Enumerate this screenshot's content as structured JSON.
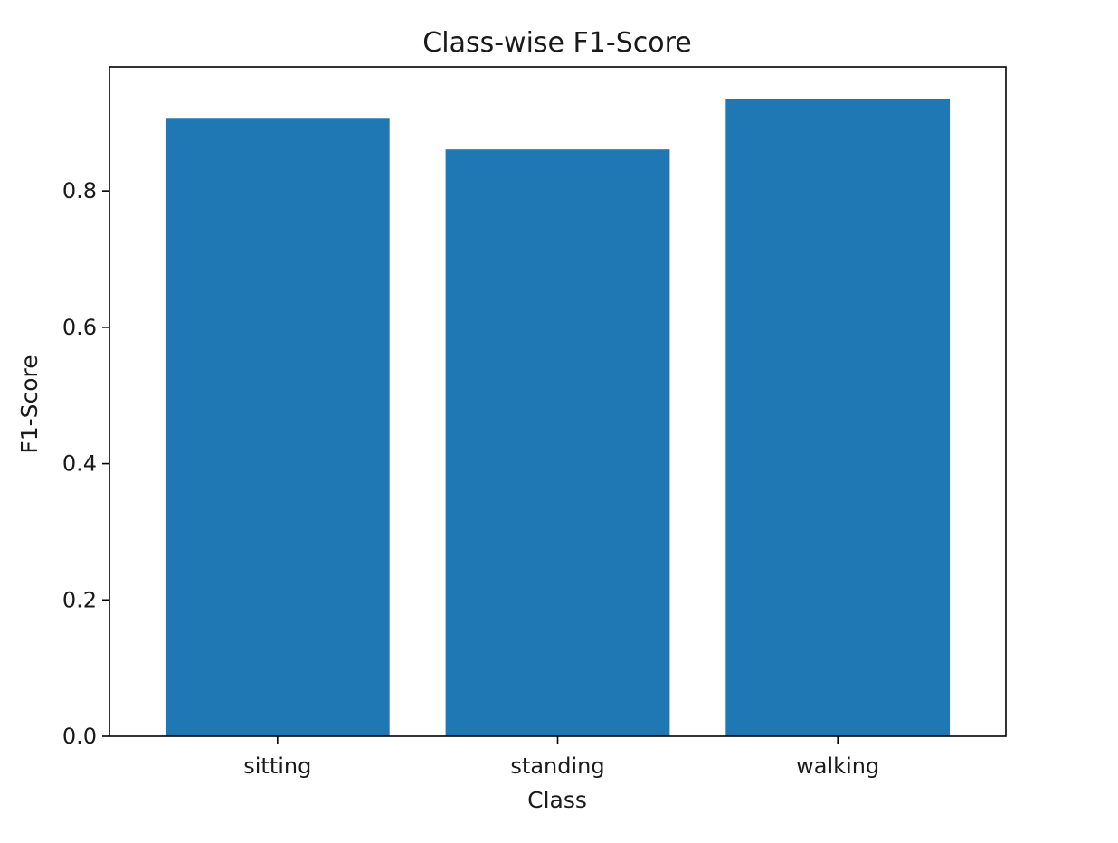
{
  "chart_data": {
    "type": "bar",
    "title": "Class-wise F1-Score",
    "xlabel": "Class",
    "ylabel": "F1-Score",
    "categories": [
      "sitting",
      "standing",
      "walking"
    ],
    "values": [
      0.906,
      0.861,
      0.935
    ],
    "ylim": [
      0,
      0.982
    ],
    "yticks": [
      "0.0",
      "0.2",
      "0.4",
      "0.6",
      "0.8"
    ],
    "ytick_values": [
      0.0,
      0.2,
      0.4,
      0.6,
      0.8
    ],
    "bar_color": "#1f77b4",
    "grid": false,
    "legend": "none"
  }
}
